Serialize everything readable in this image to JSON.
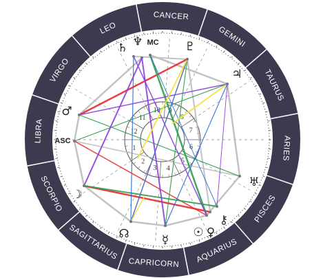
{
  "signs": [
    "ARIES",
    "TAURUS",
    "GEMINI",
    "CANCER",
    "LEO",
    "VIRGO",
    "LIBRA",
    "SCORPIO",
    "SAGITTARIUS",
    "CAPRICORN",
    "AQUARIUS",
    "PISCES"
  ],
  "planets": [
    "♄",
    "♆",
    "♇",
    "♃",
    "♂",
    "☽",
    "♅",
    "☊",
    "☿",
    "☉",
    "♀",
    "⚷"
  ],
  "angles": {
    "asc": "ASC",
    "mc": "MC"
  },
  "houses": [
    "1",
    "2",
    "3",
    "4",
    "5",
    "6",
    "7",
    "8",
    "9",
    "10",
    "11",
    "12"
  ]
}
